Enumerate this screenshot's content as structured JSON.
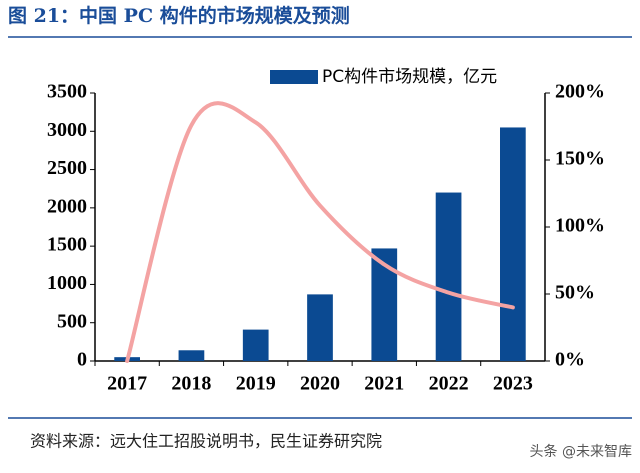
{
  "title": "图 21：中国 PC 构件的市场规模及预测",
  "source": "资料来源：远大住工招股说明书，民生证券研究院",
  "watermark": "头条 @未来智库",
  "chart_data": {
    "type": "bar",
    "categories": [
      "2017",
      "2018",
      "2019",
      "2020",
      "2021",
      "2022",
      "2023"
    ],
    "series": [
      {
        "name": "PC构件市场规模，亿元",
        "type": "bar",
        "color": "#0b4a92",
        "values": [
          50,
          140,
          410,
          870,
          1470,
          2200,
          3050
        ]
      },
      {
        "type": "line",
        "axis": "y2",
        "color": "#f4a3a3",
        "values": [
          0,
          176,
          178,
          116,
          72,
          51,
          40
        ]
      }
    ],
    "ylim": [
      0,
      3500
    ],
    "yticks": [
      0,
      500,
      1000,
      1500,
      2000,
      2500,
      3000,
      3500
    ],
    "y2lim": [
      0,
      200
    ],
    "y2ticks": [
      {
        "value": 0,
        "label": "0%"
      },
      {
        "value": 50,
        "label": "50%"
      },
      {
        "value": 100,
        "label": "100%"
      },
      {
        "value": 150,
        "label": "150%"
      },
      {
        "value": 200,
        "label": "200%"
      }
    ],
    "legend": "top-right"
  }
}
